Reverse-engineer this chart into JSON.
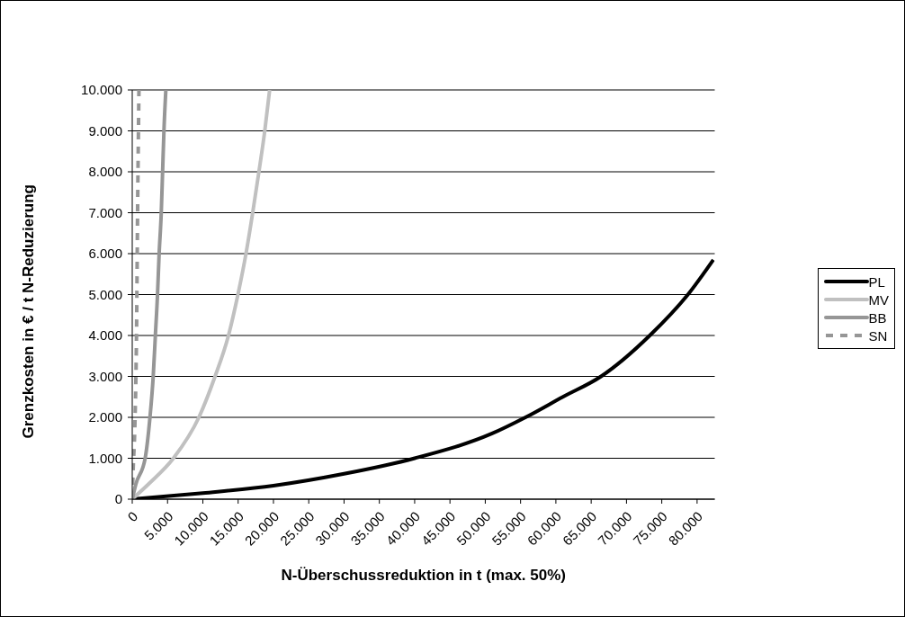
{
  "chart_data": {
    "type": "line",
    "xlabel": "N-Überschussreduktion in t (max. 50%)",
    "ylabel": "Grenzkosten in € / t N-Reduzierung",
    "xlim": [
      0,
      82500
    ],
    "xticks": [
      {
        "value": 0,
        "label": "0"
      },
      {
        "value": 5000,
        "label": "5.000"
      },
      {
        "value": 10000,
        "label": "10.000"
      },
      {
        "value": 15000,
        "label": "15.000"
      },
      {
        "value": 20000,
        "label": "20.000"
      },
      {
        "value": 25000,
        "label": "25.000"
      },
      {
        "value": 30000,
        "label": "30.000"
      },
      {
        "value": 35000,
        "label": "35.000"
      },
      {
        "value": 40000,
        "label": "40.000"
      },
      {
        "value": 45000,
        "label": "45.000"
      },
      {
        "value": 50000,
        "label": "50.000"
      },
      {
        "value": 55000,
        "label": "55.000"
      },
      {
        "value": 60000,
        "label": "60.000"
      },
      {
        "value": 65000,
        "label": "65.000"
      },
      {
        "value": 70000,
        "label": "70.000"
      },
      {
        "value": 75000,
        "label": "75.000"
      },
      {
        "value": 80000,
        "label": "80.000"
      }
    ],
    "ylim": [
      0,
      10000
    ],
    "yticks": [
      {
        "value": 0,
        "label": "0"
      },
      {
        "value": 1000,
        "label": "1.000"
      },
      {
        "value": 2000,
        "label": "2.000"
      },
      {
        "value": 3000,
        "label": "3.000"
      },
      {
        "value": 4000,
        "label": "4.000"
      },
      {
        "value": 5000,
        "label": "5.000"
      },
      {
        "value": 6000,
        "label": "6.000"
      },
      {
        "value": 7000,
        "label": "7.000"
      },
      {
        "value": 8000,
        "label": "8.000"
      },
      {
        "value": 9000,
        "label": "9.000"
      },
      {
        "value": 10000,
        "label": "10.000"
      }
    ],
    "grid": "y",
    "legend": "right",
    "marker": "none",
    "series": [
      {
        "name": "PL",
        "color": "#000000",
        "line_style": "solid",
        "x": [
          0,
          10000,
          20000,
          30000,
          40000,
          50900,
          55700,
          61000,
          66400,
          73300,
          78700,
          82300
        ],
        "values": [
          0,
          150,
          330,
          620,
          1000,
          1600,
          2000,
          2500,
          3000,
          4000,
          5000,
          5850
        ]
      },
      {
        "name": "MV",
        "color": "#c0c0c0",
        "line_style": "solid",
        "x": [
          0,
          2500,
          5830,
          9440,
          11730,
          13630,
          14970,
          16110,
          17060,
          17940,
          18770,
          19460
        ],
        "values": [
          0,
          400,
          1000,
          2000,
          3000,
          4000,
          5000,
          6000,
          7000,
          8000,
          9000,
          10000
        ]
      },
      {
        "name": "BB",
        "color": "#969696",
        "line_style": "solid",
        "x": [
          0,
          500,
          1830,
          2510,
          2970,
          3275,
          3580,
          3810,
          4110,
          4300,
          4490,
          4760
        ],
        "values": [
          0,
          360,
          1000,
          2000,
          3000,
          4000,
          5000,
          6000,
          7000,
          8000,
          9000,
          10000
        ]
      },
      {
        "name": "SN",
        "color": "#969696",
        "line_style": "dashed",
        "x": [
          0,
          115,
          380,
          610,
          760,
          950
        ],
        "values": [
          0,
          660,
          1850,
          4100,
          7090,
          10000
        ]
      }
    ]
  }
}
